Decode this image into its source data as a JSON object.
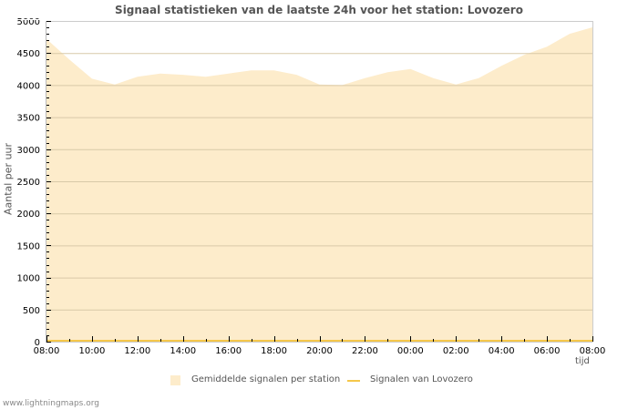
{
  "chart_data": {
    "type": "area",
    "title": "Signaal statistieken van de laatste 24h voor het station: Lovozero",
    "xlabel": "tijd",
    "ylabel": "Aantal per uur",
    "ylim": [
      0,
      5000
    ],
    "yticks": [
      0,
      500,
      1000,
      1500,
      2000,
      2500,
      3000,
      3500,
      4000,
      4500,
      5000
    ],
    "xtick_labels": [
      "08:00",
      "10:00",
      "12:00",
      "14:00",
      "16:00",
      "18:00",
      "20:00",
      "22:00",
      "00:00",
      "02:00",
      "04:00",
      "06:00",
      "08:00"
    ],
    "grid": true,
    "legend_position": "bottom",
    "x": [
      "08:00",
      "09:00",
      "10:00",
      "11:00",
      "12:00",
      "13:00",
      "14:00",
      "15:00",
      "16:00",
      "17:00",
      "18:00",
      "19:00",
      "20:00",
      "21:00",
      "22:00",
      "23:00",
      "00:00",
      "01:00",
      "02:00",
      "03:00",
      "04:00",
      "05:00",
      "06:00",
      "07:00",
      "08:00"
    ],
    "series": [
      {
        "name": "Gemiddelde signalen per station",
        "style": "area",
        "color": "#fdeccb",
        "values": [
          4720,
          4400,
          4100,
          4010,
          4130,
          4180,
          4160,
          4130,
          4180,
          4230,
          4230,
          4160,
          4010,
          4000,
          4110,
          4200,
          4250,
          4110,
          4010,
          4110,
          4300,
          4470,
          4600,
          4800,
          4900
        ]
      },
      {
        "name": "Signalen van Lovozero",
        "style": "line",
        "color": "#f5c74a",
        "values": [
          0,
          0,
          0,
          0,
          0,
          0,
          0,
          0,
          0,
          0,
          0,
          0,
          0,
          0,
          0,
          0,
          0,
          0,
          0,
          0,
          0,
          0,
          0,
          0,
          0
        ]
      }
    ]
  },
  "footer": "www.lightningmaps.org"
}
